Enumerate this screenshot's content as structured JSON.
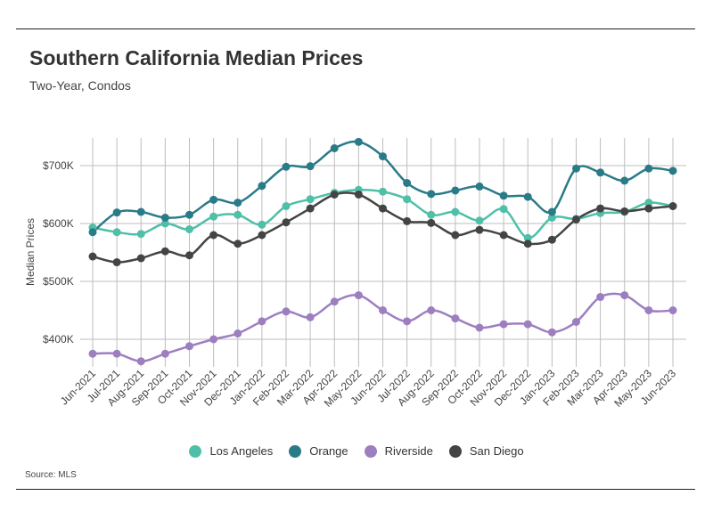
{
  "header": {
    "title": "Southern California Median Prices",
    "subtitle": "Two-Year, Condos"
  },
  "footer": {
    "source": "Source:  MLS"
  },
  "chart_data": {
    "type": "line",
    "title": "Southern California Median Prices",
    "subtitle": "Two-Year, Condos",
    "xlabel": "",
    "ylabel": "Median Prices",
    "x": [
      "Jun-2021",
      "Jul-2021",
      "Aug-2021",
      "Sep-2021",
      "Oct-2021",
      "Nov-2021",
      "Dec-2021",
      "Jan-2022",
      "Feb-2022",
      "Mar-2022",
      "Apr-2022",
      "May-2022",
      "Jun-2022",
      "Jul-2022",
      "Aug-2022",
      "Sep-2022",
      "Oct-2022",
      "Nov-2022",
      "Dec-2022",
      "Jan-2023",
      "Feb-2023",
      "Mar-2023",
      "Apr-2023",
      "May-2023",
      "Jun-2023"
    ],
    "ylim": [
      350000,
      750000
    ],
    "yticks": [
      400000,
      500000,
      600000,
      700000
    ],
    "ytick_labels": [
      "$400K",
      "$500K",
      "$600K",
      "$700K"
    ],
    "grid": true,
    "legend": "bottom",
    "series": [
      {
        "name": "Los Angeles",
        "color": "#4fbfa8",
        "values": [
          593000,
          585000,
          582000,
          600000,
          590000,
          612000,
          615000,
          598000,
          630000,
          642000,
          653000,
          658000,
          655000,
          642000,
          615000,
          620000,
          605000,
          625000,
          575000,
          610000,
          608000,
          618000,
          620000,
          636000,
          630000
        ]
      },
      {
        "name": "Orange",
        "color": "#2a7b88",
        "values": [
          585000,
          619000,
          620000,
          610000,
          615000,
          641000,
          636000,
          665000,
          698000,
          699000,
          730000,
          741000,
          716000,
          670000,
          651000,
          657000,
          664000,
          648000,
          646000,
          620000,
          695000,
          688000,
          674000,
          695000,
          691000
        ]
      },
      {
        "name": "Riverside",
        "color": "#9d7fc0",
        "values": [
          375000,
          375000,
          362000,
          375000,
          388000,
          400000,
          410000,
          431000,
          448000,
          438000,
          465000,
          476000,
          450000,
          431000,
          450000,
          436000,
          420000,
          426000,
          426000,
          412000,
          430000,
          473000,
          476000,
          450000,
          450000
        ]
      },
      {
        "name": "San Diego",
        "color": "#444444",
        "values": [
          543000,
          533000,
          540000,
          552000,
          545000,
          580000,
          565000,
          580000,
          602000,
          626000,
          650000,
          650000,
          626000,
          604000,
          601000,
          580000,
          589000,
          580000,
          565000,
          572000,
          607000,
          626000,
          621000,
          626000,
          630000
        ]
      }
    ]
  }
}
